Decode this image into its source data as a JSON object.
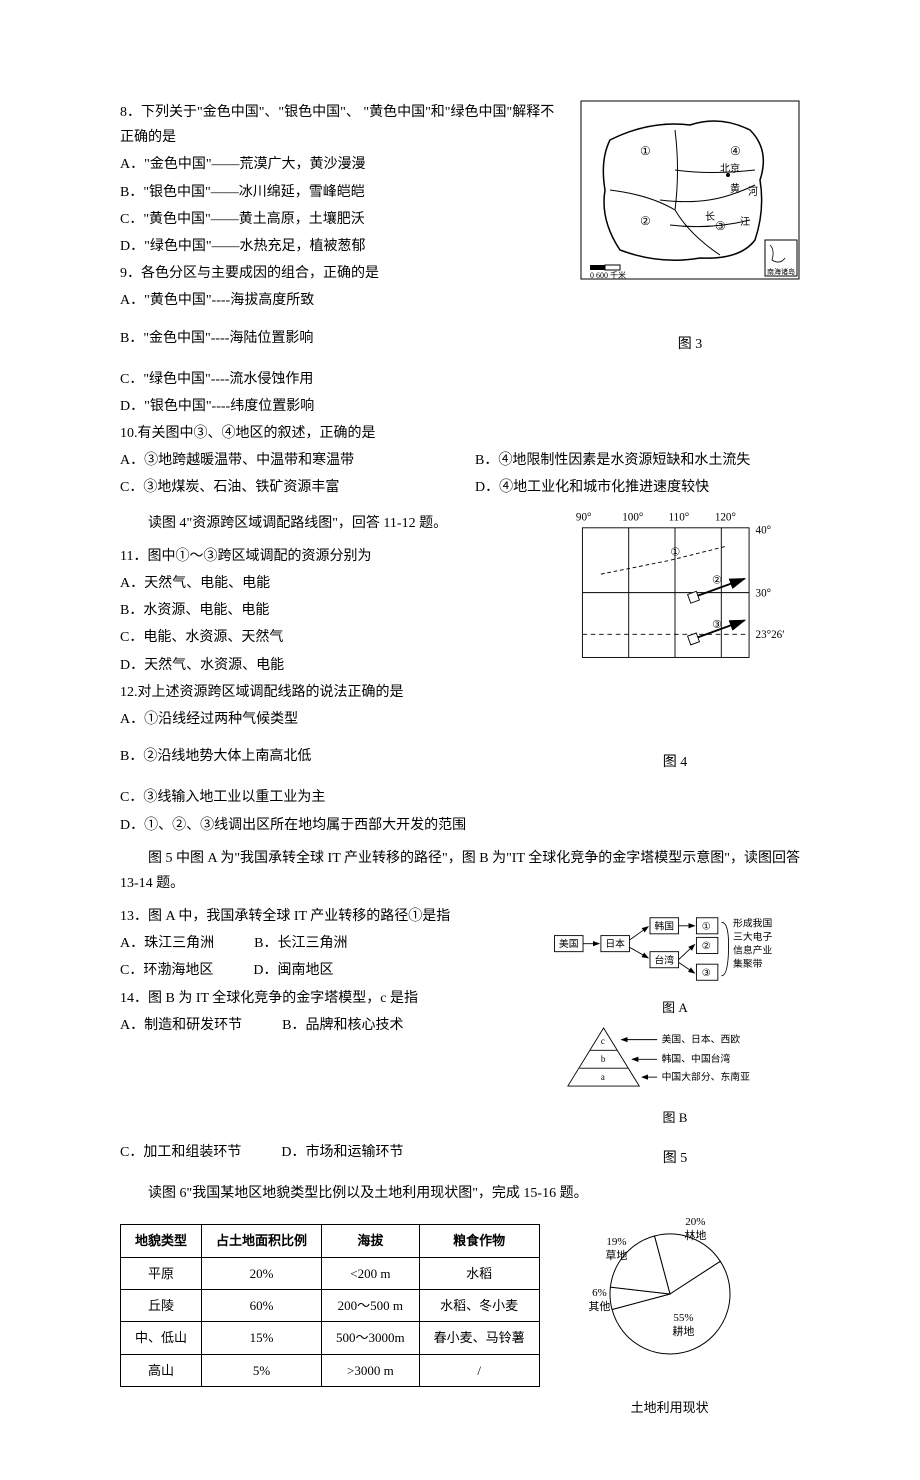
{
  "q8": {
    "text": "8．下列关于\"金色中国\"、\"银色中国\"、 \"黄色中国\"和\"绿色中国\"解释不正确的是",
    "optA": "A．\"金色中国\"——荒漠广大，黄沙漫漫",
    "optB": "B．\"银色中国\"——冰川绵延，雪峰皑皑",
    "optC": "C．\"黄色中国\"——黄土高原，土壤肥沃",
    "optD": "D．\"绿色中国\"——水热充足，植被葱郁"
  },
  "q9": {
    "text": "9．各色分区与主要成因的组合，正确的是",
    "optA": "A．\"黄色中国\"----海拔高度所致",
    "optB": "B．\"金色中国\"----海陆位置影响",
    "optC": "C．\"绿色中国\"----流水侵蚀作用",
    "optD": "D．\"银色中国\"----纬度位置影响"
  },
  "q10": {
    "text": "10.有关图中③、④地区的叙述，正确的是",
    "optA": "A．③地跨越暖温带、中温带和寒温带",
    "optB": "B．④地限制性因素是水资源短缺和水土流失",
    "optC": "C．③地煤炭、石油、铁矿资源丰富",
    "optD": "D．④地工业化和城市化推进速度较快"
  },
  "fig3": {
    "label": "图 3",
    "scale": "0    600 千米",
    "marks": {
      "m1": "①",
      "m2": "②",
      "m3": "③",
      "m4": "④"
    },
    "labels": {
      "beijing": "北京",
      "huang": "黄",
      "he": "河",
      "chang": "长",
      "jiang": "江",
      "nanhai": "南海诸岛"
    }
  },
  "intro11": "读图 4\"资源跨区域调配路线图\"，回答 11-12 题。",
  "q11": {
    "text": "11．图中①～③跨区域调配的资源分别为",
    "optA": "A．天然气、电能、电能",
    "optB": "B．水资源、电能、电能",
    "optC": "C．电能、水资源、天然气",
    "optD": "D．天然气、水资源、电能"
  },
  "q12": {
    "text": "12.对上述资源跨区域调配线路的说法正确的是",
    "optA": "A．①沿线经过两种气候类型",
    "optB": "B．②沿线地势大体上南高北低",
    "optC": "C．③线输入地工业以重工业为主",
    "optD": "D．①、②、③线调出区所在地均属于西部大开发的范围"
  },
  "fig4": {
    "label": "图 4",
    "x": {
      "x90": "90°",
      "x100": "100°",
      "x110": "110°",
      "x120": "120°"
    },
    "y": {
      "y40": "40°",
      "y30": "30°",
      "y23": "23°26′"
    },
    "marks": {
      "m1": "①",
      "m2": "②",
      "m3": "③"
    }
  },
  "intro13": "图 5 中图 A 为\"我国承转全球 IT 产业转移的路径\"，图 B 为\"IT 全球化竞争的金字塔模型示意图\"，读图回答 13-14 题。",
  "q13": {
    "text": "13．图 A 中，我国承转全球 IT 产业转移的路径①是指",
    "optA": "A．珠江三角洲",
    "optB": "B．长江三角洲",
    "optC": "C．环渤海地区",
    "optD": "D．闽南地区"
  },
  "q14": {
    "text": "14．图 B 为 IT 全球化竞争的金字塔模型，c 是指",
    "optA": "A．制造和研发环节",
    "optB": "B．品牌和核心技术",
    "optC": "C．加工和组装环节",
    "optD": "D．市场和运输环节"
  },
  "fig5": {
    "label": "图 5",
    "figA": {
      "label": "图 A",
      "us": "美国",
      "jp": "日本",
      "kr": "韩国",
      "tw": "台湾",
      "m1": "①",
      "m2": "②",
      "m3": "③",
      "note1": "形成我国",
      "note2": "三大电子",
      "note3": "信息产业",
      "note4": "集聚带"
    },
    "figB": {
      "label": "图 B",
      "c": "c",
      "b": "b",
      "a": "a",
      "l1": "美国、日本、西欧",
      "l2": "韩国、中国台湾",
      "l3": "中国大部分、东南亚"
    }
  },
  "intro15": "读图 6\"我国某地区地貌类型比例以及土地利用现状图\"，完成 15-16 题。",
  "table": {
    "headers": {
      "h1": "地貌类型",
      "h2": "占土地面积比例",
      "h3": "海拔",
      "h4": "粮食作物"
    },
    "rows": [
      {
        "c1": "平原",
        "c2": "20%",
        "c3": "<200 m",
        "c4": "水稻"
      },
      {
        "c1": "丘陵",
        "c2": "60%",
        "c3": "200～500 m",
        "c4": "水稻、冬小麦"
      },
      {
        "c1": "中、低山",
        "c2": "15%",
        "c3": "500～3000m",
        "c4": "春小麦、马铃薯"
      },
      {
        "c1": "高山",
        "c2": "5%",
        "c3": ">3000 m",
        "c4": "/"
      }
    ]
  },
  "pie": {
    "label": "土地利用现状",
    "slices": [
      {
        "label": "林地",
        "value": 20,
        "pct": "20%"
      },
      {
        "label": "耕地",
        "value": 55,
        "pct": "55%"
      },
      {
        "label": "其他",
        "value": 6,
        "pct": "6%"
      },
      {
        "label": "草地",
        "value": 19,
        "pct": "19%"
      }
    ],
    "colors": {
      "bg": "#ffffff",
      "stroke": "#000000"
    }
  }
}
